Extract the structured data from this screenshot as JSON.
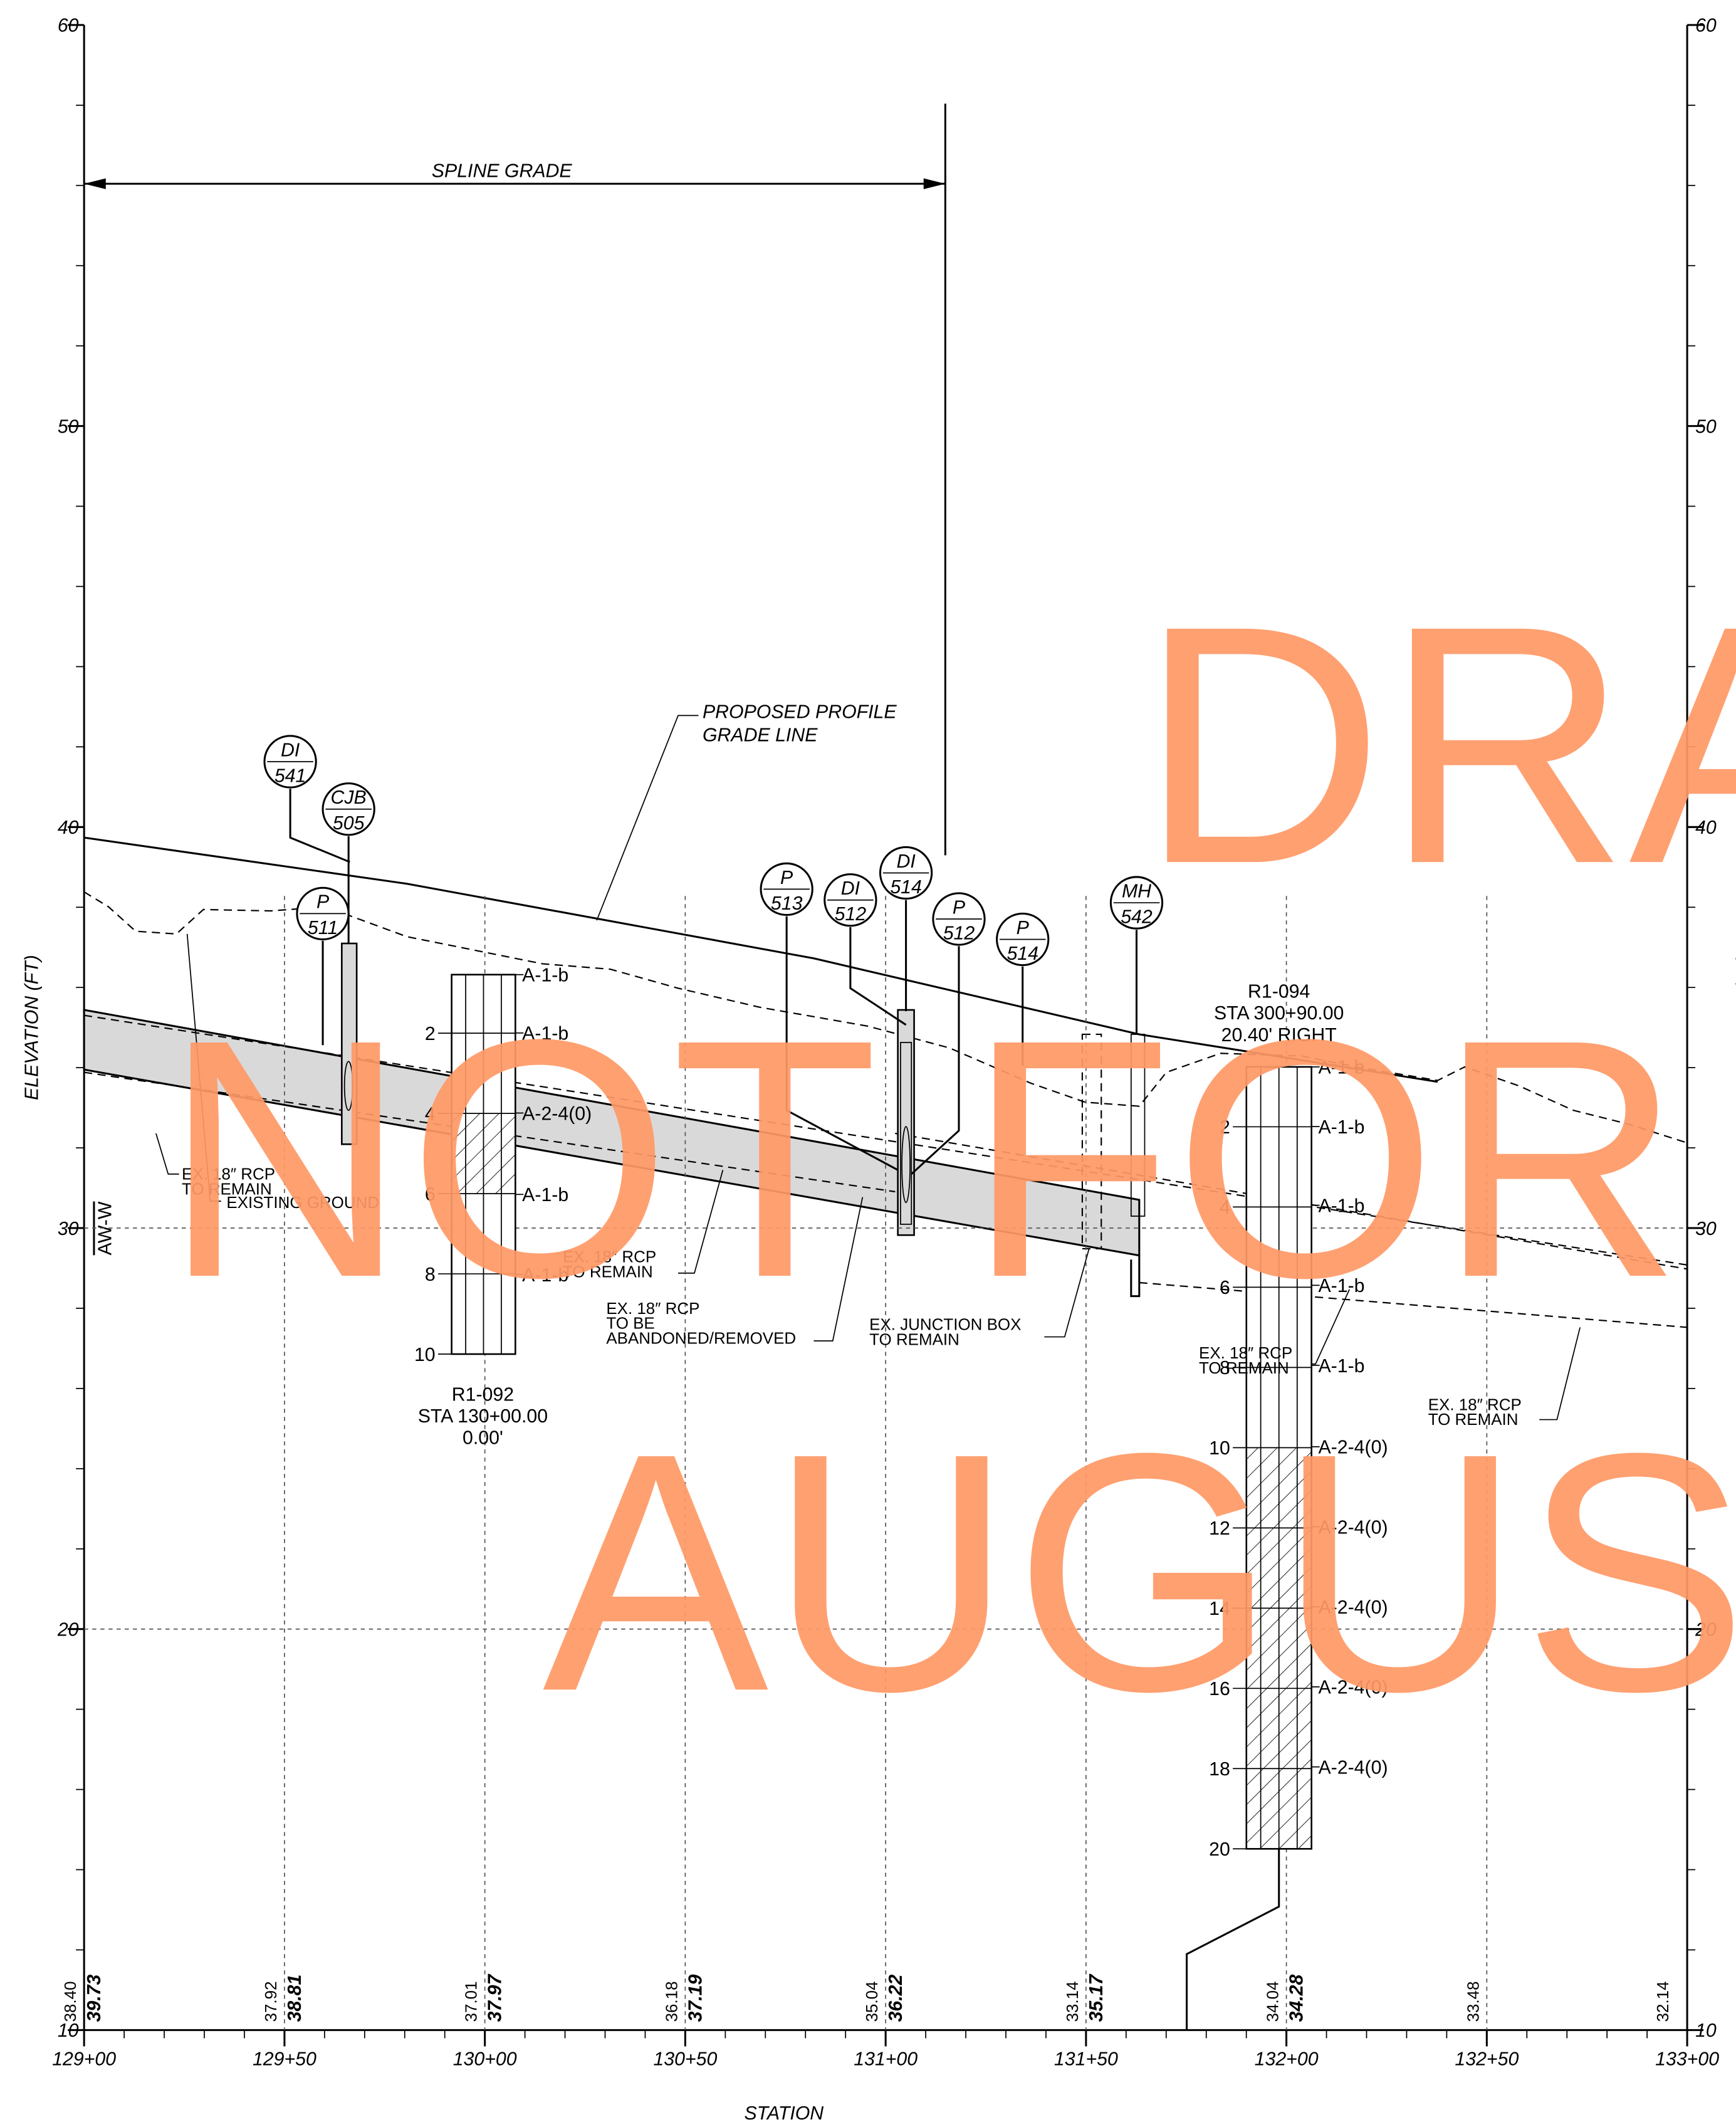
{
  "axes": {
    "y_title": "ELEVATION (FT)",
    "x_title": "STATION",
    "elevation_ticks": [
      60,
      50,
      40,
      30,
      20,
      10
    ],
    "stations": [
      "129+00",
      "129+50",
      "130+00",
      "130+50",
      "131+00",
      "131+50",
      "132+00",
      "132+50",
      "133+00"
    ]
  },
  "labels": {
    "spline_grade": "SPLINE GRADE",
    "grade_line": [
      "PROPOSED PROFILE",
      "GRADE LINE"
    ],
    "alignment": "AW-W"
  },
  "structures": [
    {
      "type": "DI",
      "id": "541"
    },
    {
      "type": "CJB",
      "id": "505"
    },
    {
      "type": "P",
      "id": "511"
    },
    {
      "type": "P",
      "id": "513"
    },
    {
      "type": "DI",
      "id": "512"
    },
    {
      "type": "DI",
      "id": "514"
    },
    {
      "type": "P",
      "id": "512"
    },
    {
      "type": "P",
      "id": "514"
    },
    {
      "type": "MH",
      "id": "542"
    }
  ],
  "borings": [
    {
      "id": "R1-092",
      "station": "STA 130+00.00",
      "offset": "0.00'",
      "depths": [
        2,
        4,
        6,
        8,
        10
      ],
      "soils": [
        "A-1-b",
        "A-1-b",
        "A-2-4(0)",
        "A-1-b",
        "A-1-b"
      ]
    },
    {
      "id": "R1-094",
      "station": "STA 300+90.00",
      "offset": "20.40' RIGHT",
      "depths": [
        2,
        4,
        6,
        8,
        10,
        12,
        14,
        16,
        18,
        20
      ],
      "soils": [
        "A-1-b",
        "A-1-b",
        "A-1-b",
        "A-1-b",
        "A-1-b",
        "A-2-4(0)",
        "A-2-4(0)",
        "A-2-4(0)",
        "A-2-4(0)",
        "A-2-4(0)"
      ]
    }
  ],
  "notes": [
    [
      "EX. 18″ RCP",
      "TO REMAIN"
    ],
    [
      "EXISTING GROUND"
    ],
    [
      "EX. 18″ RCP",
      "TO REMAIN"
    ],
    [
      "EX. 18″ RCP",
      "TO BE",
      "ABANDONED/REMOVED"
    ],
    [
      "EX. JUNCTION BOX",
      "TO REMAIN"
    ],
    [
      "EX. 18″ RCP",
      "TO REMAIN"
    ],
    [
      "EX. 18″ RCP",
      "TO REMAIN"
    ]
  ],
  "elevations": [
    {
      "existing": "38.40",
      "proposed": "39.73"
    },
    {
      "existing": "37.92",
      "proposed": "38.81"
    },
    {
      "existing": "37.01",
      "proposed": "37.97"
    },
    {
      "existing": "36.18",
      "proposed": "37.19"
    },
    {
      "existing": "35.04",
      "proposed": "36.22"
    },
    {
      "existing": "33.14",
      "proposed": "35.17"
    },
    {
      "existing": "34.04",
      "proposed": "34.28"
    },
    {
      "existing": "33.48"
    },
    {
      "existing": "32.14"
    }
  ],
  "watermark": [
    "DRA",
    "NOT FOR",
    "AUGUS"
  ]
}
